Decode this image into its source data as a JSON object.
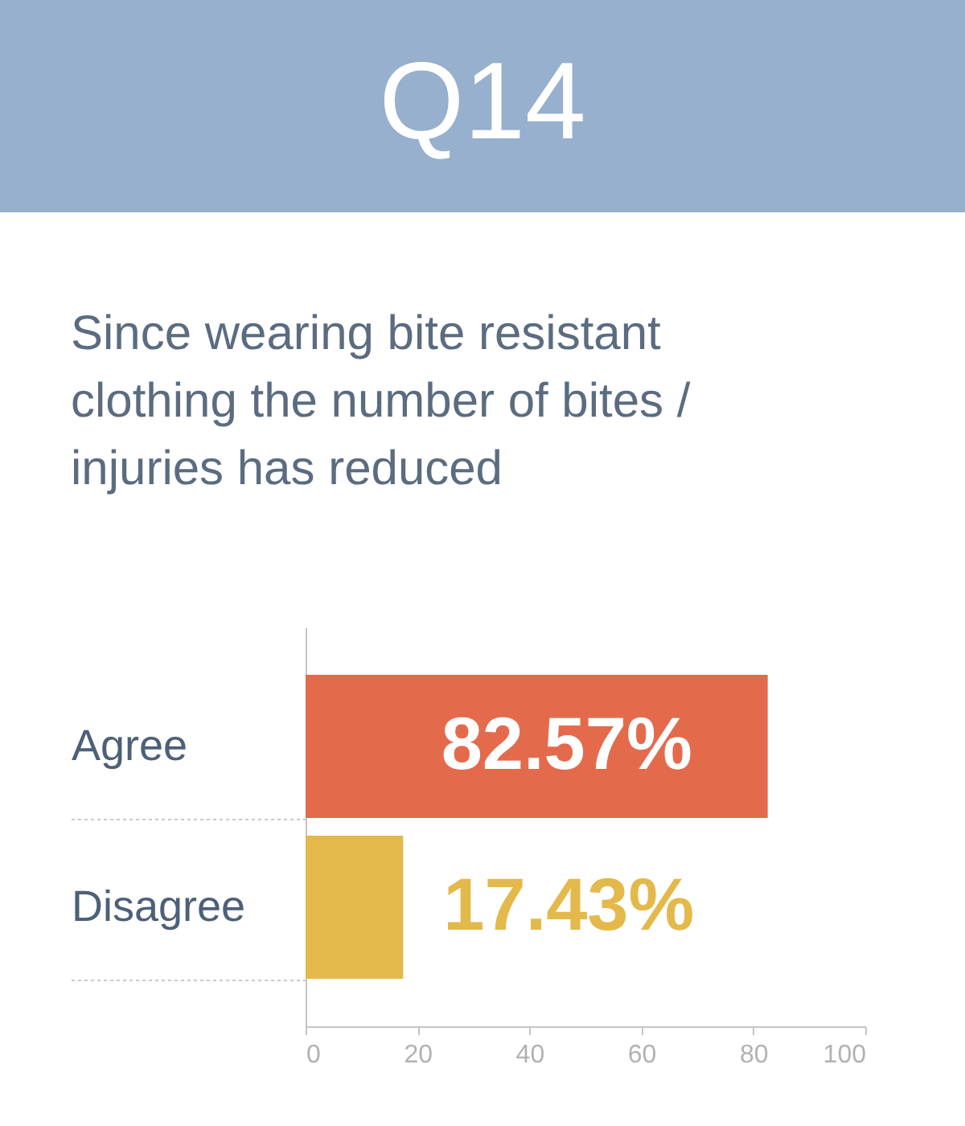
{
  "chart_data": {
    "type": "bar",
    "orientation": "horizontal",
    "title": "Q14",
    "subtitle": "Since wearing bite resistant clothing the number of bites / injuries has reduced",
    "categories": [
      "Agree",
      "Disagree"
    ],
    "values": [
      82.57,
      17.43
    ],
    "colors": [
      "#e46a4c",
      "#e4b94b"
    ],
    "value_labels": [
      "82.57%",
      "17.43%"
    ],
    "xlim": [
      0,
      100
    ],
    "xticks": [
      0,
      20,
      40,
      60,
      80,
      100
    ],
    "grid": false
  }
}
